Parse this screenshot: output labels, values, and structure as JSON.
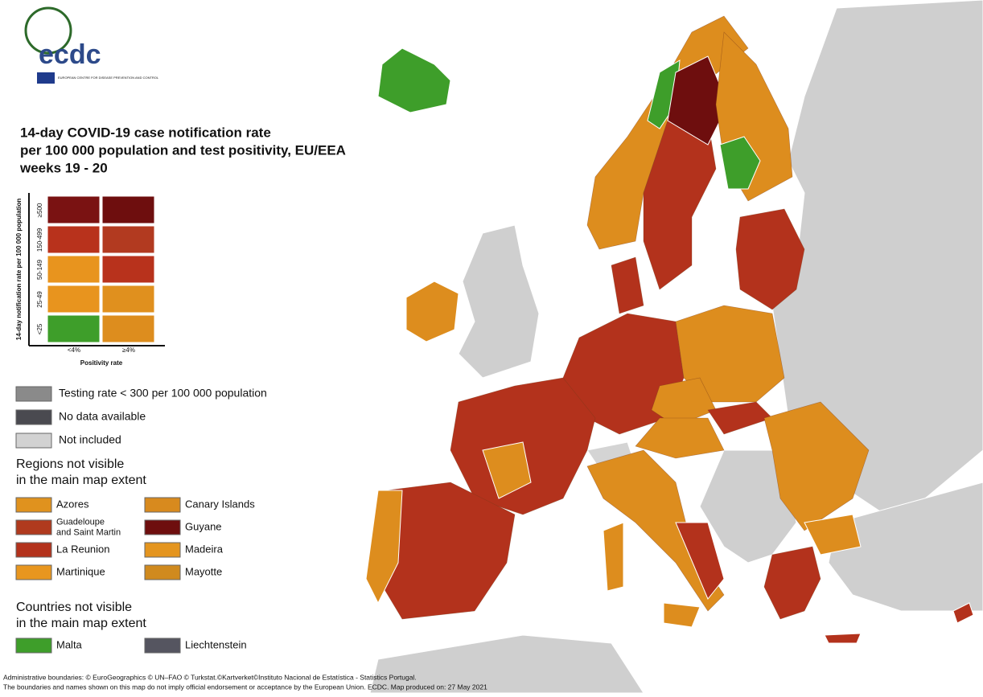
{
  "logo": {
    "name": "ecdc",
    "subtitle": "EUROPEAN CENTRE FOR DISEASE PREVENTION AND CONTROL"
  },
  "title": [
    "14-day COVID-19 case notification rate",
    "per 100 000 population and test positivity, EU/EEA",
    "weeks 19 - 20"
  ],
  "matrix": {
    "y_label": "14-day notification rate per 100 000 population",
    "rows": [
      "≥500",
      "150-499",
      "50-149",
      "25-49",
      "<25"
    ],
    "columns": [
      "<4%",
      "≥4%"
    ],
    "x_label": "Positivity rate",
    "colors": [
      [
        "#7a1212",
        "#6e0e0e"
      ],
      [
        "#b8321c",
        "#b23a20"
      ],
      [
        "#e8941e",
        "#b8321c"
      ],
      [
        "#e8941e",
        "#e0901e"
      ],
      [
        "#3e9e2a",
        "#dd8d1e"
      ]
    ]
  },
  "legend": [
    {
      "label": "Testing rate < 300 per 100 000 population",
      "color": "#8a8a8a"
    },
    {
      "label": "No data available",
      "color": "#4a4a50"
    },
    {
      "label": "Not included",
      "color": "#d2d2d2"
    }
  ],
  "regions": {
    "heading": [
      "Regions not visible",
      "in the main map extent"
    ],
    "items": [
      {
        "label": [
          "Azores"
        ],
        "color": "#e0921e"
      },
      {
        "label": [
          "Canary Islands"
        ],
        "color": "#d88a1e"
      },
      {
        "label": [
          "Guadeloupe",
          "and Saint Martin"
        ],
        "color": "#b03a1e"
      },
      {
        "label": [
          "Guyane"
        ],
        "color": "#6e0e0e"
      },
      {
        "label": [
          "La Reunion"
        ],
        "color": "#b3321c"
      },
      {
        "label": [
          "Madeira"
        ],
        "color": "#e4951f"
      },
      {
        "label": [
          "Martinique"
        ],
        "color": "#e8961f"
      },
      {
        "label": [
          "Mayotte"
        ],
        "color": "#d08a1e"
      }
    ]
  },
  "countries": {
    "heading": [
      "Countries not visible",
      "in the main map extent"
    ],
    "items": [
      {
        "label": [
          "Malta"
        ],
        "color": "#3e9e2a"
      },
      {
        "label": [
          "Liechtenstein"
        ],
        "color": "#555560"
      }
    ]
  },
  "footer": [
    "Administrative boundaries: © EuroGeographics © UN–FAO © Turkstat.©Kartverket©Instituto Nacional de Estatística - Statistics Portugal.",
    "The boundaries and names shown on this map do not imply official endorsement or acceptance by the European Union. ECDC. Map produced on: 27 May 2021"
  ]
}
